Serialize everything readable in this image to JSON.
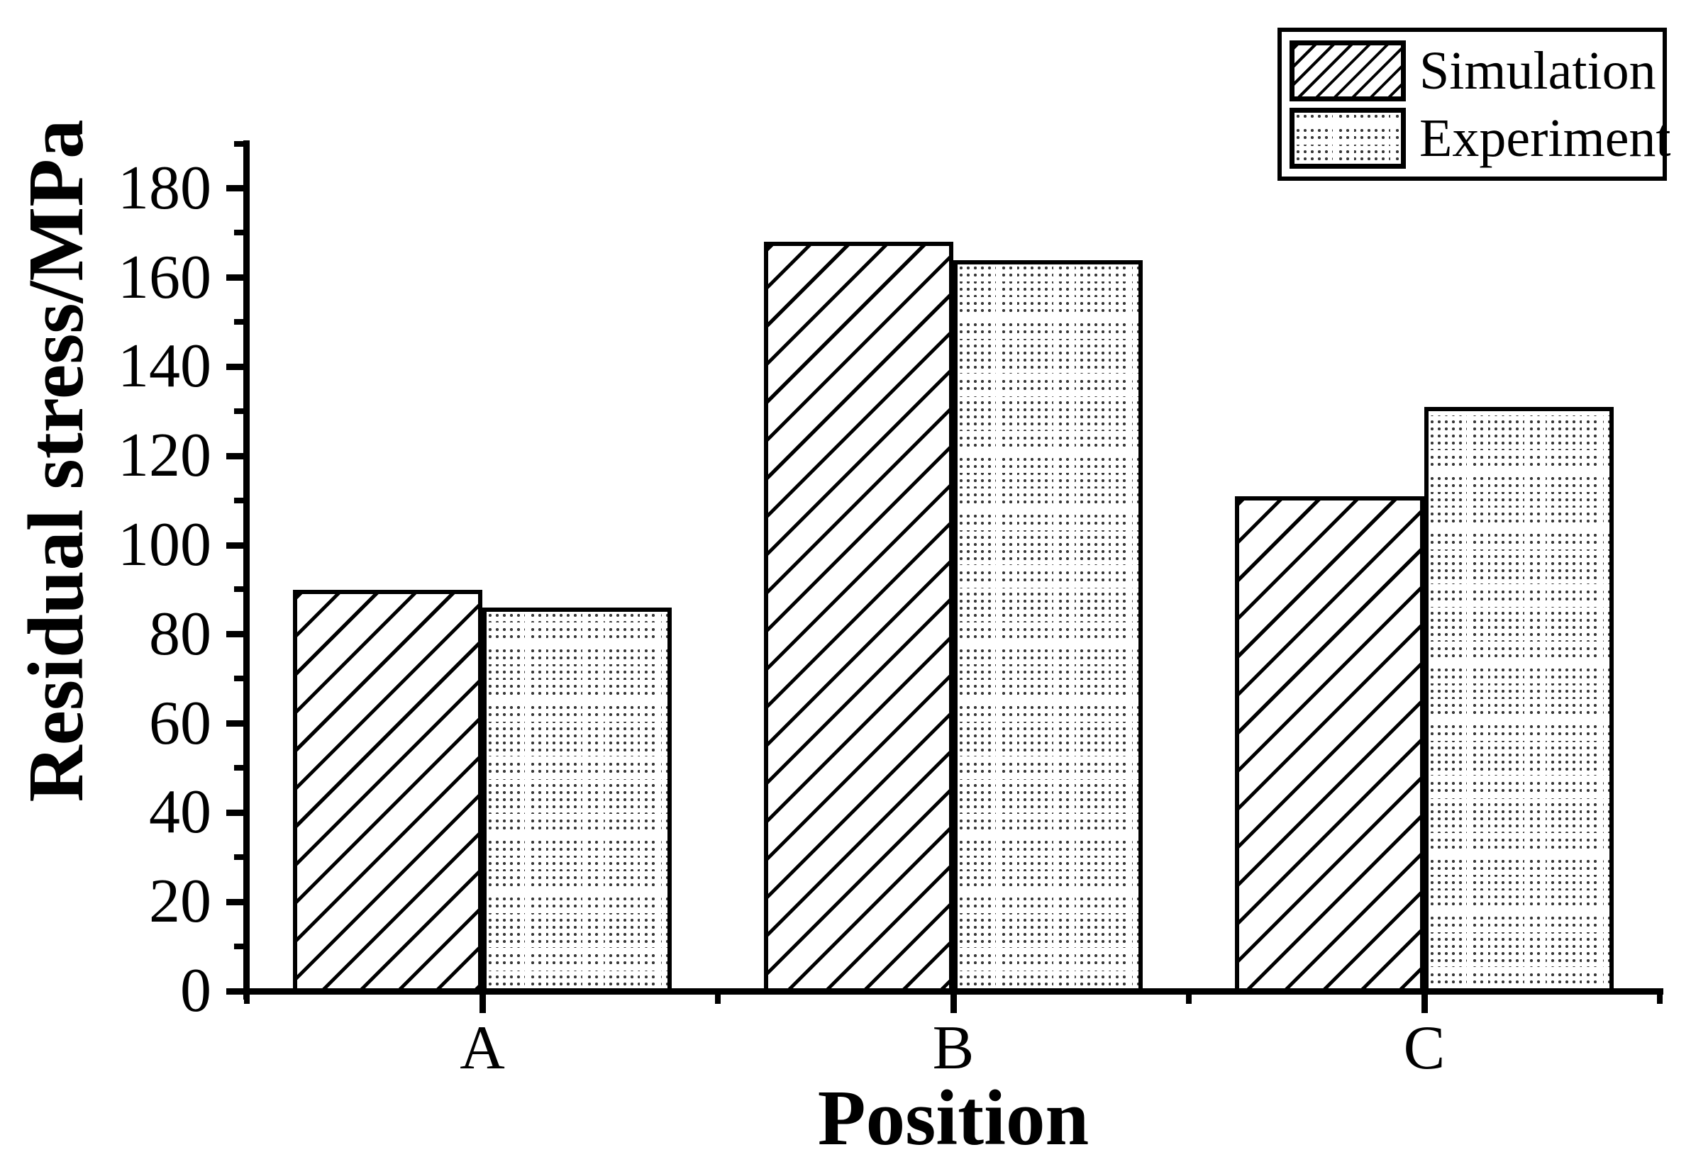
{
  "chart_data": {
    "type": "bar",
    "title": "",
    "xlabel": "Position",
    "ylabel": "Residual stress/MPa",
    "categories": [
      "A",
      "B",
      "C"
    ],
    "series": [
      {
        "name": "Simulation",
        "pattern": "diagonal-hatch",
        "values": [
          90,
          168,
          111
        ]
      },
      {
        "name": "Experiment",
        "pattern": "dot-grid",
        "values": [
          86,
          164,
          131
        ]
      }
    ],
    "ylim": [
      0,
      190
    ],
    "y_major_tick_step": 20,
    "y_minor_tick_step": 10,
    "y_tick_labels": [
      "0",
      "20",
      "40",
      "60",
      "80",
      "100",
      "120",
      "140",
      "160",
      "180"
    ],
    "x_minor_ticks_at_group_boundaries": true,
    "grid": false,
    "legend_position": "top-right",
    "colors": {
      "foreground": "#000000",
      "background": "#ffffff",
      "bar_fill": "#ffffff",
      "bar_border": "#000000",
      "dot_texture": "#383838"
    }
  }
}
